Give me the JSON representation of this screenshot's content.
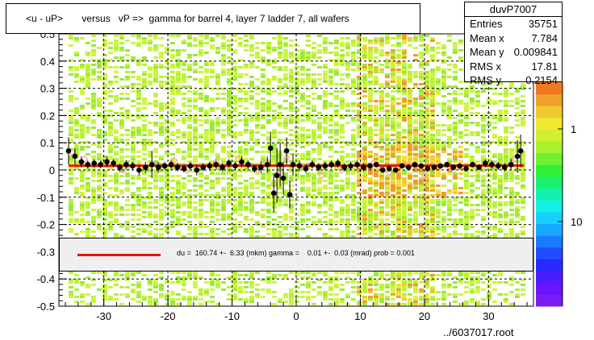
{
  "header": {
    "title": "<u - uP>       versus   vP =>  gamma for barrel 4, layer 7 ladder 7, all wafers"
  },
  "stats": {
    "name": "duvP7007",
    "rows": [
      {
        "label": "Entries",
        "value": "35751"
      },
      {
        "label": "Mean x",
        "value": "7.784"
      },
      {
        "label": "Mean y",
        "value": "0.009841"
      },
      {
        "label": "RMS x",
        "value": "17.81"
      },
      {
        "label": "RMS y",
        "value": "0.2154"
      }
    ]
  },
  "fit": {
    "text": "du =  160.74 +-  6.33 (mkm) gamma =    0.01 +-  0.03 (mrad) prob = 0.001"
  },
  "footer": {
    "file": "../6037017.root"
  },
  "colors": {
    "fit_line": "#e8140c",
    "profile_marker": "#000000",
    "open_marker": "#ff9ea0"
  },
  "chart_data": {
    "type": "heatmap",
    "title": "<u - uP>       versus   vP =>  gamma for barrel 4, layer 7 ladder 7, all wafers",
    "xlabel": "",
    "ylabel": "",
    "xlim": [
      -37,
      37
    ],
    "ylim": [
      -0.5,
      0.5
    ],
    "x_ticks": [
      -30,
      -20,
      -10,
      0,
      10,
      20,
      30
    ],
    "y_ticks": [
      -0.5,
      -0.4,
      -0.3,
      -0.2,
      -0.1,
      0,
      0.1,
      0.2,
      0.3,
      0.4,
      0.5
    ],
    "y_tick_labels": [
      "-0.5",
      "-0.4",
      "-0.3",
      "-0.2",
      "-0.1",
      "0",
      "0.1",
      "0.2",
      "0.3",
      "0.4",
      "0.5"
    ],
    "z_scale": "log",
    "z_tick_labels": [
      "1",
      "10"
    ],
    "grid": true,
    "fit_line": {
      "intercept": 0.016,
      "slope": 1e-05
    },
    "profile_points": [
      {
        "x": -35.5,
        "y": 0.07,
        "err": 0.05
      },
      {
        "x": -34.5,
        "y": 0.05,
        "err": 0.03
      },
      {
        "x": -33.5,
        "y": 0.03,
        "err": 0.02
      },
      {
        "x": -32.5,
        "y": 0.02,
        "err": 0.015
      },
      {
        "x": -31.5,
        "y": 0.025,
        "err": 0.015
      },
      {
        "x": -30.5,
        "y": 0.02,
        "err": 0.015
      },
      {
        "x": -29.5,
        "y": 0.03,
        "err": 0.02
      },
      {
        "x": -28.5,
        "y": 0.025,
        "err": 0.015
      },
      {
        "x": -27.5,
        "y": 0.01,
        "err": 0.015
      },
      {
        "x": -26.5,
        "y": 0.02,
        "err": 0.015
      },
      {
        "x": -25.5,
        "y": 0.015,
        "err": 0.015
      },
      {
        "x": -24.5,
        "y": 0.0,
        "err": 0.02
      },
      {
        "x": -23.5,
        "y": 0.01,
        "err": 0.02
      },
      {
        "x": -22.5,
        "y": 0.02,
        "err": 0.05
      },
      {
        "x": -21.5,
        "y": 0.01,
        "err": 0.02
      },
      {
        "x": -20.5,
        "y": 0.015,
        "err": 0.015
      },
      {
        "x": -19.5,
        "y": 0.02,
        "err": 0.015
      },
      {
        "x": -18.5,
        "y": 0.01,
        "err": 0.015
      },
      {
        "x": -17.5,
        "y": 0.005,
        "err": 0.015
      },
      {
        "x": -16.5,
        "y": 0.015,
        "err": 0.015
      },
      {
        "x": -15.5,
        "y": 0.0,
        "err": 0.02
      },
      {
        "x": -14.5,
        "y": 0.01,
        "err": 0.015
      },
      {
        "x": -13.5,
        "y": 0.015,
        "err": 0.015
      },
      {
        "x": -12.5,
        "y": 0.02,
        "err": 0.015
      },
      {
        "x": -11.5,
        "y": 0.01,
        "err": 0.015
      },
      {
        "x": -10.5,
        "y": 0.025,
        "err": 0.015
      },
      {
        "x": -9.5,
        "y": 0.015,
        "err": 0.015
      },
      {
        "x": -8.5,
        "y": 0.03,
        "err": 0.02
      },
      {
        "x": -7.5,
        "y": 0.02,
        "err": 0.015
      },
      {
        "x": -6.5,
        "y": 0.005,
        "err": 0.015
      },
      {
        "x": -5.5,
        "y": 0.01,
        "err": 0.02
      },
      {
        "x": -4.5,
        "y": 0.02,
        "err": 0.03
      },
      {
        "x": -4.0,
        "y": 0.08,
        "err": 0.06
      },
      {
        "x": -3.5,
        "y": -0.085,
        "err": 0.07
      },
      {
        "x": -3.0,
        "y": -0.02,
        "err": 0.1
      },
      {
        "x": -2.5,
        "y": 0.02,
        "err": 0.08
      },
      {
        "x": -2.0,
        "y": -0.03,
        "err": 0.06
      },
      {
        "x": -1.5,
        "y": 0.07,
        "err": 0.05
      },
      {
        "x": -1.0,
        "y": -0.09,
        "err": 0.05
      },
      {
        "x": -0.5,
        "y": 0.02,
        "err": 0.04
      },
      {
        "x": 0.5,
        "y": 0.015,
        "err": 0.02
      },
      {
        "x": 1.5,
        "y": 0.005,
        "err": 0.015
      },
      {
        "x": 2.5,
        "y": 0.02,
        "err": 0.015
      },
      {
        "x": 3.5,
        "y": 0.01,
        "err": 0.015
      },
      {
        "x": 4.5,
        "y": 0.015,
        "err": 0.015
      },
      {
        "x": 5.5,
        "y": 0.02,
        "err": 0.015
      },
      {
        "x": 6.5,
        "y": 0.025,
        "err": 0.015
      },
      {
        "x": 7.5,
        "y": 0.01,
        "err": 0.015
      },
      {
        "x": 8.5,
        "y": 0.015,
        "err": 0.015
      },
      {
        "x": 9.5,
        "y": 0.02,
        "err": 0.015
      },
      {
        "x": 10.5,
        "y": 0.01,
        "err": 0.015
      },
      {
        "x": 11.5,
        "y": 0.015,
        "err": 0.01
      },
      {
        "x": 12.5,
        "y": 0.02,
        "err": 0.01
      },
      {
        "x": 13.5,
        "y": 0.0,
        "err": 0.01
      },
      {
        "x": 14.5,
        "y": 0.005,
        "err": 0.01
      },
      {
        "x": 15.5,
        "y": 0.0,
        "err": 0.01
      },
      {
        "x": 16.5,
        "y": 0.015,
        "err": 0.01
      },
      {
        "x": 17.5,
        "y": 0.01,
        "err": 0.01
      },
      {
        "x": 18.5,
        "y": 0.02,
        "err": 0.01
      },
      {
        "x": 19.5,
        "y": 0.015,
        "err": 0.01
      },
      {
        "x": 20.5,
        "y": 0.005,
        "err": 0.01
      },
      {
        "x": 21.5,
        "y": 0.01,
        "err": 0.01
      },
      {
        "x": 22.5,
        "y": 0.015,
        "err": 0.01
      },
      {
        "x": 23.5,
        "y": 0.02,
        "err": 0.01
      },
      {
        "x": 24.5,
        "y": 0.01,
        "err": 0.01
      },
      {
        "x": 25.5,
        "y": 0.015,
        "err": 0.01
      },
      {
        "x": 26.5,
        "y": 0.005,
        "err": 0.01
      },
      {
        "x": 27.5,
        "y": 0.02,
        "err": 0.01
      },
      {
        "x": 28.5,
        "y": 0.01,
        "err": 0.01
      },
      {
        "x": 29.5,
        "y": 0.025,
        "err": 0.015
      },
      {
        "x": 30.5,
        "y": 0.02,
        "err": 0.015
      },
      {
        "x": 31.5,
        "y": 0.015,
        "err": 0.015
      },
      {
        "x": 32.5,
        "y": 0.01,
        "err": 0.015
      },
      {
        "x": 33.5,
        "y": 0.02,
        "err": 0.02
      },
      {
        "x": 34.5,
        "y": 0.05,
        "err": 0.06
      },
      {
        "x": 35.0,
        "y": 0.07,
        "err": 0.06
      }
    ],
    "open_points": [
      {
        "x": -35.0,
        "y": 0.065
      },
      {
        "x": -33.0,
        "y": 0.04
      },
      {
        "x": -30.0,
        "y": 0.03
      },
      {
        "x": -27.0,
        "y": 0.0
      },
      {
        "x": -22.5,
        "y": 0.02
      },
      {
        "x": -19.0,
        "y": 0.035
      },
      {
        "x": -17.0,
        "y": 0.0
      },
      {
        "x": -12.5,
        "y": 0.03
      },
      {
        "x": -9.0,
        "y": 0.04
      },
      {
        "x": -6.0,
        "y": 0.0
      },
      {
        "x": -4.5,
        "y": 0.03
      },
      {
        "x": -3.5,
        "y": -0.05
      },
      {
        "x": -2.5,
        "y": -0.01
      },
      {
        "x": -1.5,
        "y": 0.045
      },
      {
        "x": 1.0,
        "y": 0.01
      },
      {
        "x": 4.0,
        "y": -0.02
      },
      {
        "x": 7.0,
        "y": 0.0
      },
      {
        "x": 12.0,
        "y": 0.025
      },
      {
        "x": 14.5,
        "y": -0.01
      },
      {
        "x": 17.5,
        "y": 0.02
      },
      {
        "x": 20.0,
        "y": -0.02
      },
      {
        "x": 21.5,
        "y": 0.01
      },
      {
        "x": 24.5,
        "y": 0.0
      },
      {
        "x": 28.0,
        "y": 0.015
      },
      {
        "x": 31.0,
        "y": 0.02
      },
      {
        "x": 34.0,
        "y": 0.04
      }
    ]
  }
}
